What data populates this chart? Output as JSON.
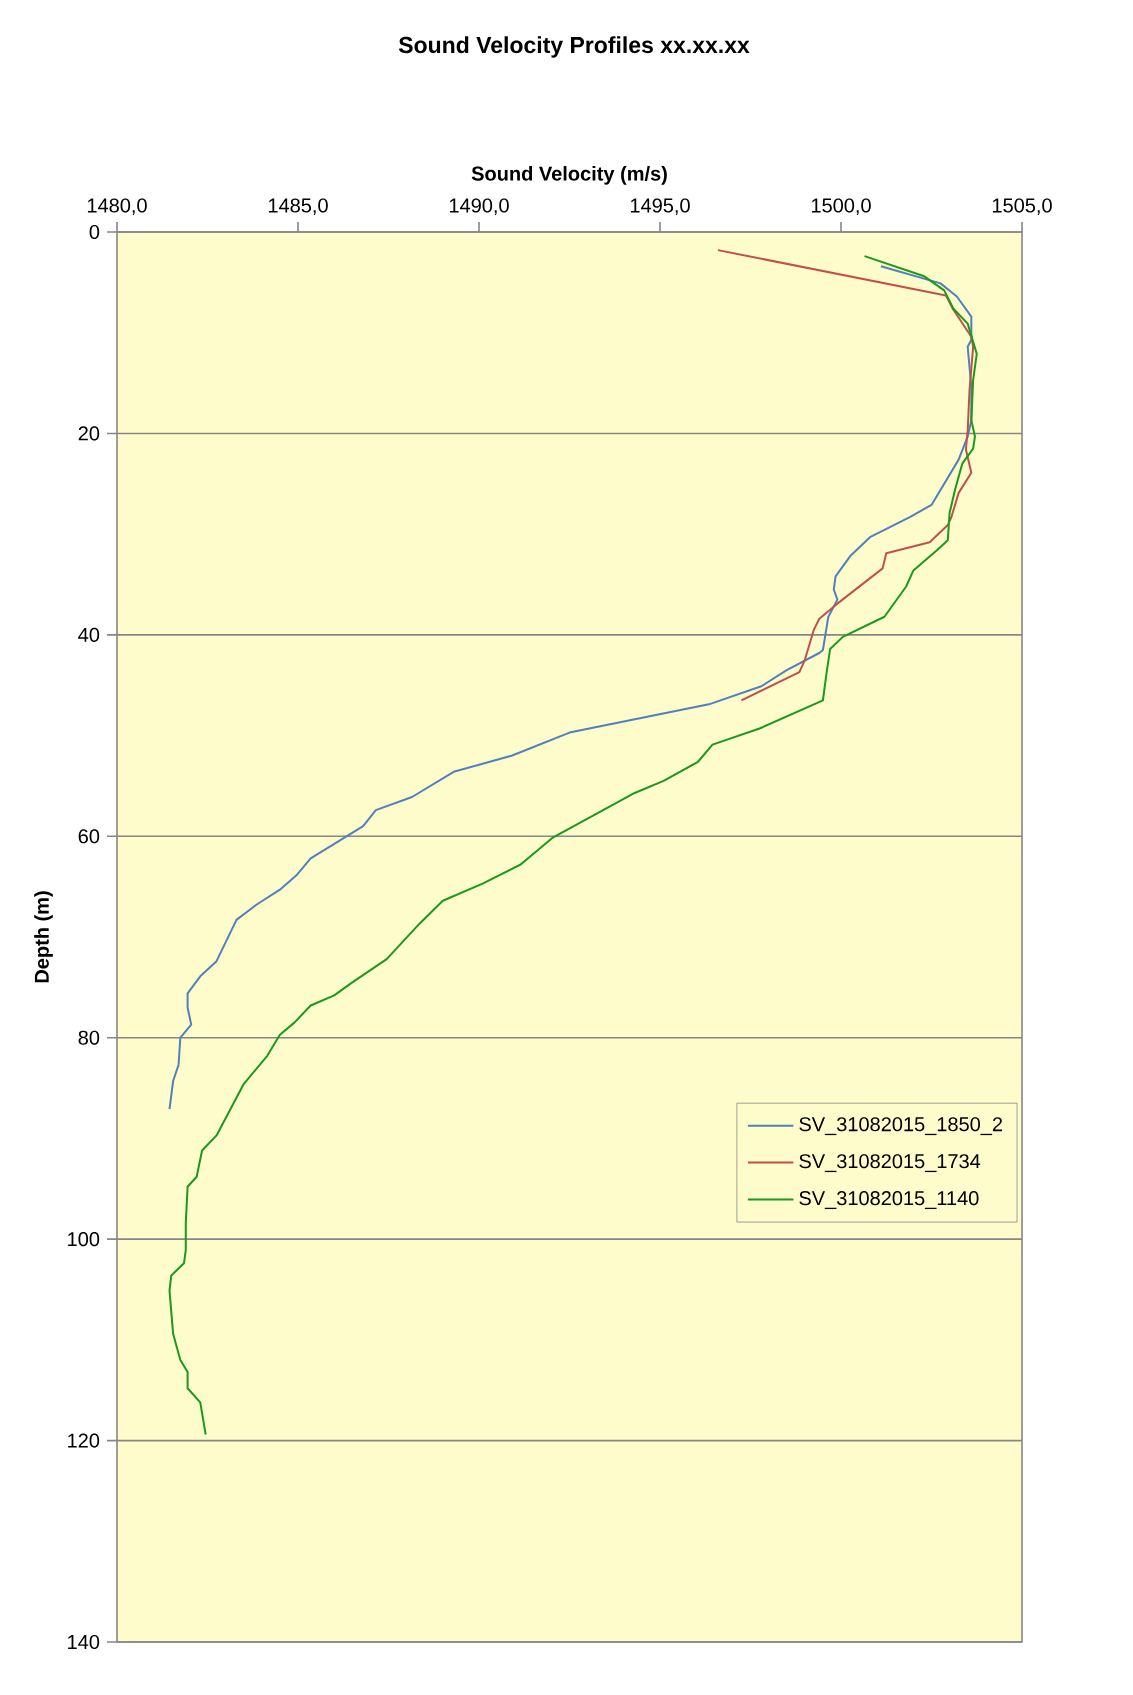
{
  "chart_data": {
    "type": "line",
    "title": "Sound Velocity Profiles xx.xx.xx",
    "xlabel": "Sound Velocity (m/s)",
    "ylabel": "Depth (m)",
    "xlim": [
      1480,
      1505
    ],
    "ylim": [
      140,
      0
    ],
    "xticks": [
      {
        "value": 1480,
        "label": "1480,0"
      },
      {
        "value": 1485,
        "label": "1485,0"
      },
      {
        "value": 1490,
        "label": "1490,0"
      },
      {
        "value": 1495,
        "label": "1495,0"
      },
      {
        "value": 1500,
        "label": "1500,0"
      },
      {
        "value": 1505,
        "label": "1505,0"
      }
    ],
    "yticks": [
      0,
      20,
      40,
      60,
      80,
      100,
      120,
      140
    ],
    "grid": "y",
    "legend": "right",
    "series": [
      {
        "name": "SV_31082015_1850_2",
        "color": "#4f81bd",
        "x": [
          1501.1,
          1502.75,
          1503.2,
          1503.6,
          1503.6,
          1503.5,
          1503.6,
          1503.6,
          1503.5,
          1503.25,
          1502.5,
          1501.9,
          1500.8,
          1500.25,
          1499.85,
          1499.8,
          1499.9,
          1499.65,
          1499.5,
          1499.4,
          1498.5,
          1497.8,
          1496.35,
          1492.5,
          1490.9,
          1489.3,
          1488.15,
          1487.15,
          1486.8,
          1485.35,
          1484.95,
          1484.5,
          1483.85,
          1483.3,
          1482.75,
          1482.3,
          1481.95,
          1481.95,
          1482.05,
          1481.75,
          1481.7,
          1481.55,
          1481.45
        ],
        "values": [
          3.4,
          5.1,
          6.4,
          8.4,
          10.7,
          11.4,
          15.4,
          18.7,
          20.3,
          22.6,
          27.1,
          28.3,
          30.3,
          32.2,
          34.2,
          35.5,
          36.5,
          38.2,
          41.5,
          41.8,
          43.5,
          45.1,
          46.9,
          49.7,
          52.0,
          53.6,
          56.1,
          57.4,
          59.0,
          62.2,
          63.9,
          65.3,
          66.8,
          68.3,
          72.4,
          73.9,
          75.6,
          77.0,
          78.7,
          80.0,
          82.7,
          84.3,
          87.1
        ]
      },
      {
        "name": "SV_31082015_1734",
        "color": "#c0504d",
        "x": [
          1496.6,
          1502.9,
          1503.1,
          1503.6,
          1503.65,
          1503.55,
          1503.5,
          1503.45,
          1503.6,
          1503.25,
          1503.05,
          1502.95,
          1502.45,
          1501.25,
          1501.15,
          1499.9,
          1499.4,
          1499.25,
          1499.0,
          1498.85,
          1497.25
        ],
        "values": [
          1.8,
          6.3,
          7.7,
          10.4,
          11.4,
          15.7,
          19.7,
          21.6,
          23.9,
          25.9,
          28.3,
          29.1,
          30.8,
          31.9,
          33.4,
          36.9,
          38.4,
          39.5,
          42.5,
          43.7,
          46.5
        ]
      },
      {
        "name": "SV_31082015_1140",
        "color": "#1a9a1a",
        "x": [
          1500.65,
          1502.3,
          1502.85,
          1503.1,
          1503.5,
          1503.75,
          1503.65,
          1503.6,
          1503.7,
          1503.65,
          1503.35,
          1503.15,
          1503.0,
          1502.95,
          1502.65,
          1502.0,
          1501.8,
          1501.2,
          1500.05,
          1499.7,
          1499.6,
          1499.5,
          1497.75,
          1496.45,
          1496.05,
          1495.1,
          1494.3,
          1492.05,
          1491.15,
          1490.1,
          1489.0,
          1488.35,
          1487.45,
          1486.5,
          1486.0,
          1485.35,
          1484.9,
          1484.5,
          1484.15,
          1483.5,
          1482.75,
          1482.35,
          1482.2,
          1481.95,
          1481.9,
          1481.9,
          1481.85,
          1481.5,
          1481.45,
          1481.55,
          1481.75,
          1481.95,
          1481.95,
          1482.3,
          1482.45
        ],
        "values": [
          2.4,
          4.4,
          5.8,
          7.6,
          9.1,
          12.1,
          14.7,
          18.7,
          20.3,
          21.5,
          23.0,
          25.6,
          27.9,
          30.6,
          31.6,
          33.6,
          35.2,
          38.2,
          40.2,
          41.4,
          43.8,
          46.5,
          49.3,
          50.9,
          52.6,
          54.5,
          55.7,
          60.1,
          62.8,
          64.7,
          66.4,
          68.7,
          72.2,
          74.5,
          75.8,
          76.8,
          78.5,
          79.7,
          81.8,
          84.6,
          89.7,
          91.2,
          93.8,
          94.8,
          98.4,
          101.1,
          102.4,
          103.6,
          105.1,
          109.4,
          112.0,
          113.2,
          114.8,
          116.2,
          119.4
        ]
      }
    ]
  }
}
